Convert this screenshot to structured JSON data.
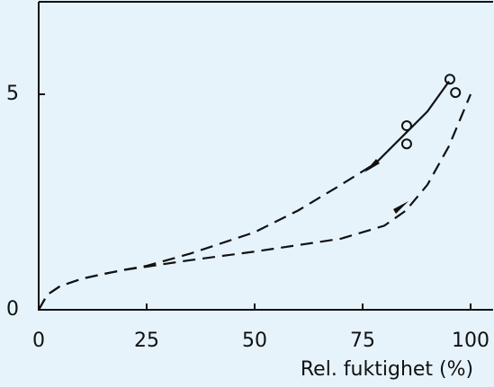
{
  "chart_data": {
    "type": "line",
    "x_label": "Rel. fuktighet (%)",
    "xlim": [
      0,
      105
    ],
    "ylim": [
      0,
      7.2
    ],
    "xticks": [
      0,
      25,
      50,
      75,
      100
    ],
    "yticks": [
      0,
      5
    ],
    "series": [
      {
        "x": [
          0,
          2,
          5,
          10,
          15,
          20,
          25,
          35,
          50,
          60,
          70,
          78
        ],
        "values": [
          0,
          0.35,
          0.55,
          0.72,
          0.83,
          0.93,
          1.02,
          1.3,
          1.8,
          2.3,
          2.9,
          3.4
        ],
        "color": "#111111",
        "line_style": "dashed"
      },
      {
        "x": [
          78,
          85,
          90,
          95
        ],
        "values": [
          3.4,
          4.1,
          4.6,
          5.3
        ],
        "color": "#111111",
        "line_style": "solid"
      },
      {
        "x": [
          0,
          2,
          5,
          10,
          15,
          20,
          25,
          35,
          50,
          60,
          70,
          80,
          85,
          90,
          95,
          100
        ],
        "values": [
          0,
          0.35,
          0.55,
          0.72,
          0.83,
          0.93,
          1.0,
          1.15,
          1.35,
          1.5,
          1.65,
          1.95,
          2.3,
          2.9,
          3.8,
          5.0
        ],
        "color": "#111111",
        "line_style": "dashed"
      }
    ],
    "points": {
      "x": [
        85.2,
        85.2,
        95.2,
        96.5
      ],
      "values": [
        4.27,
        3.85,
        5.35,
        5.04
      ],
      "color": "#111111"
    }
  }
}
